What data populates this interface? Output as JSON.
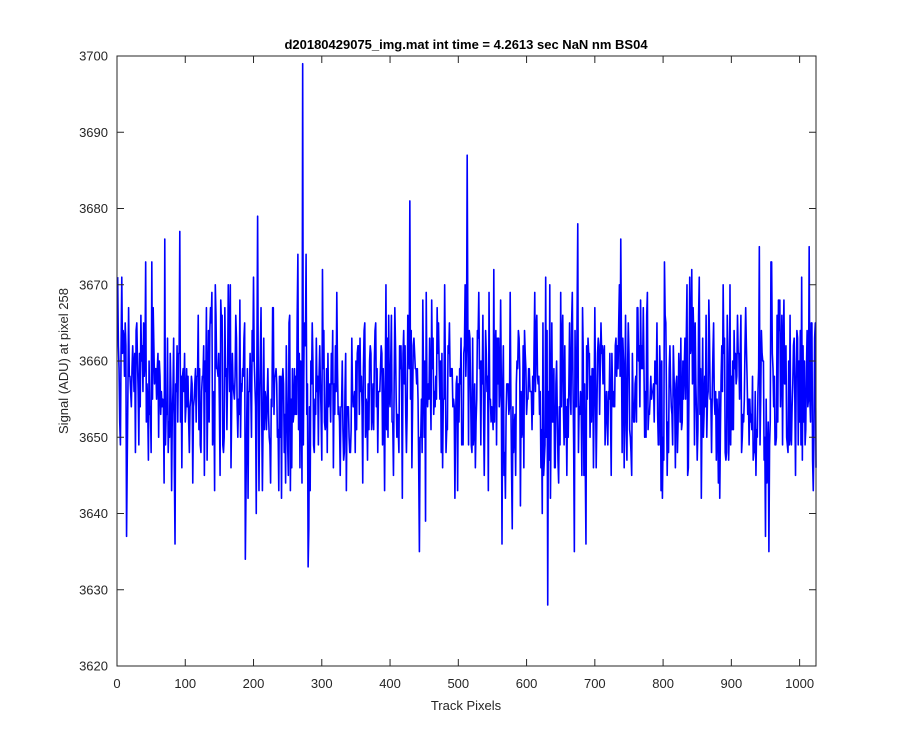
{
  "chart_data": {
    "type": "line",
    "title": "d20180429075_img.mat int time = 4.2613 sec  NaN nm BS04",
    "xlabel": "Track Pixels",
    "ylabel": "Signal (ADU) at pixel 258",
    "xlim": [
      0,
      1024
    ],
    "ylim": [
      3620,
      3700
    ],
    "xticks": [
      0,
      100,
      200,
      300,
      400,
      500,
      600,
      700,
      800,
      900,
      1000
    ],
    "yticks": [
      3620,
      3630,
      3640,
      3650,
      3660,
      3670,
      3680,
      3690,
      3700
    ],
    "grid": false,
    "series": [
      {
        "color": "#0000ff",
        "baseline": 3656,
        "noise_std": 7,
        "n_points": 1024,
        "notable_points": [
          {
            "x": 1,
            "y": 3671
          },
          {
            "x": 14,
            "y": 3637
          },
          {
            "x": 42,
            "y": 3673
          },
          {
            "x": 85,
            "y": 3636
          },
          {
            "x": 92,
            "y": 3677
          },
          {
            "x": 188,
            "y": 3634
          },
          {
            "x": 206,
            "y": 3679
          },
          {
            "x": 272,
            "y": 3699
          },
          {
            "x": 280,
            "y": 3633
          },
          {
            "x": 429,
            "y": 3681
          },
          {
            "x": 443,
            "y": 3635
          },
          {
            "x": 513,
            "y": 3687
          },
          {
            "x": 564,
            "y": 3636
          },
          {
            "x": 614,
            "y": 3664
          },
          {
            "x": 631,
            "y": 3628
          },
          {
            "x": 670,
            "y": 3635
          },
          {
            "x": 675,
            "y": 3678
          },
          {
            "x": 955,
            "y": 3635
          },
          {
            "x": 1014,
            "y": 3675
          },
          {
            "x": 1020,
            "y": 3643
          }
        ]
      }
    ]
  }
}
